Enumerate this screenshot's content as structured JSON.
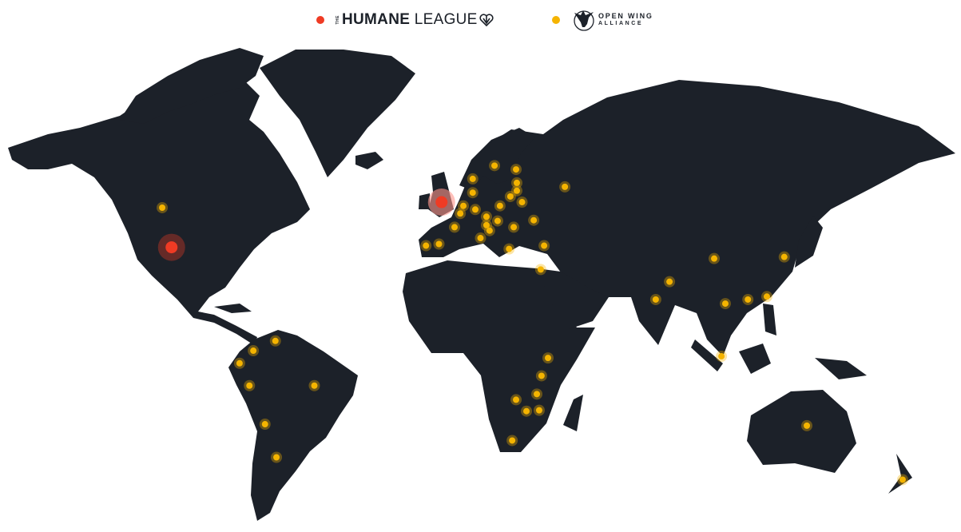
{
  "legend": {
    "items": [
      {
        "the": "THE",
        "name_bold": "HUMANE",
        "name_rest": " LEAGUE",
        "color": "#ef3b24",
        "icon": "heart-icon"
      },
      {
        "line1": "OPEN WING",
        "line2": "ALLIANCE",
        "color": "#f5b400",
        "icon": "bird-logo-icon"
      }
    ]
  },
  "colors": {
    "land": "#1c2129",
    "borders": "#4a5260",
    "water": "#ffffff"
  },
  "projection": "miller",
  "markers": {
    "the_humane_league": [
      {
        "lon": -105,
        "lat": 39,
        "size": "large"
      },
      {
        "lon": -1,
        "lat": 52,
        "size": "large"
      }
    ],
    "open_wing_alliance": [
      {
        "lon": -108.6,
        "lat": 50.5
      },
      {
        "lon": -65,
        "lat": 7.5
      },
      {
        "lon": -73.5,
        "lat": 4
      },
      {
        "lon": -78.8,
        "lat": -0.5
      },
      {
        "lon": -75,
        "lat": -8.5
      },
      {
        "lon": -50,
        "lat": -8.5
      },
      {
        "lon": -69,
        "lat": -22
      },
      {
        "lon": -64.6,
        "lat": -33
      },
      {
        "lon": 19.4,
        "lat": 61.2
      },
      {
        "lon": 27.7,
        "lat": 60.3
      },
      {
        "lon": 11,
        "lat": 58
      },
      {
        "lon": 46.5,
        "lat": 56
      },
      {
        "lon": 28,
        "lat": 57
      },
      {
        "lon": 28,
        "lat": 55
      },
      {
        "lon": 11,
        "lat": 54.5
      },
      {
        "lon": 25.5,
        "lat": 53.5
      },
      {
        "lon": 30,
        "lat": 52
      },
      {
        "lon": 7.4,
        "lat": 51
      },
      {
        "lon": 21.5,
        "lat": 51
      },
      {
        "lon": 6.2,
        "lat": 48.9
      },
      {
        "lon": 12,
        "lat": 50
      },
      {
        "lon": 16.3,
        "lat": 48
      },
      {
        "lon": 20.6,
        "lat": 46.8
      },
      {
        "lon": 34.5,
        "lat": 47
      },
      {
        "lon": 16.3,
        "lat": 45.6
      },
      {
        "lon": 4,
        "lat": 45
      },
      {
        "lon": 26.8,
        "lat": 45
      },
      {
        "lon": 17.5,
        "lat": 44
      },
      {
        "lon": 14,
        "lat": 41.8
      },
      {
        "lon": -2,
        "lat": 40
      },
      {
        "lon": -7,
        "lat": 39.5
      },
      {
        "lon": 25,
        "lat": 38.5
      },
      {
        "lon": 38.5,
        "lat": 39.5
      },
      {
        "lon": 37.2,
        "lat": 32
      },
      {
        "lon": 40,
        "lat": 1.4
      },
      {
        "lon": 37.5,
        "lat": -5
      },
      {
        "lon": 35.7,
        "lat": -11.5
      },
      {
        "lon": 27.7,
        "lat": -13.5
      },
      {
        "lon": 31.7,
        "lat": -17.5
      },
      {
        "lon": 36.6,
        "lat": -17.2
      },
      {
        "lon": 26.2,
        "lat": -27.5
      },
      {
        "lon": 104,
        "lat": 35.5
      },
      {
        "lon": 86.8,
        "lat": 28
      },
      {
        "lon": 81.5,
        "lat": 22
      },
      {
        "lon": 108.3,
        "lat": 20.6
      },
      {
        "lon": 117,
        "lat": 22
      },
      {
        "lon": 124.3,
        "lat": 23
      },
      {
        "lon": 131,
        "lat": 36
      },
      {
        "lon": 106.8,
        "lat": 2
      },
      {
        "lon": 139.7,
        "lat": -22.5
      },
      {
        "lon": 176.6,
        "lat": -40
      }
    ]
  }
}
